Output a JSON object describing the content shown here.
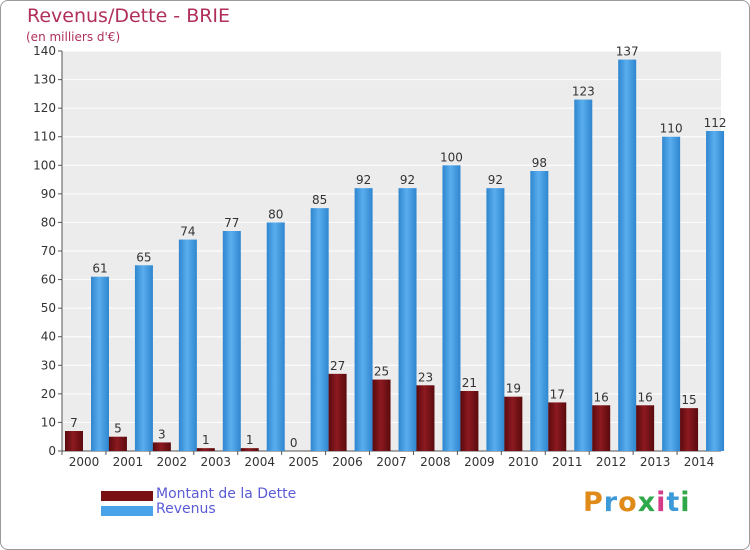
{
  "header": {
    "title": "Revenus/Dette - BRIE",
    "subtitle": "(en milliers d'€)"
  },
  "legend": {
    "items": [
      {
        "label": "Montant de la Dette",
        "color": "#7a0f14"
      },
      {
        "label": "Revenus",
        "color": "#4aa3e8"
      }
    ]
  },
  "logo": {
    "text": "Proxiti",
    "colors": [
      "#e08a1a",
      "#3d9ad8",
      "#e08a1a",
      "#2fa84a",
      "#d63b8a",
      "#3d9ad8",
      "#2fa84a"
    ]
  },
  "chart_data": {
    "type": "bar",
    "categories": [
      "2000",
      "2001",
      "2002",
      "2003",
      "2004",
      "2005",
      "2006",
      "2007",
      "2008",
      "2009",
      "2010",
      "2011",
      "2012",
      "2013",
      "2014"
    ],
    "series": [
      {
        "name": "Montant de la Dette",
        "color": "#7a0f14",
        "values": [
          7,
          5,
          3,
          1,
          1,
          0,
          27,
          25,
          23,
          21,
          19,
          17,
          16,
          16,
          15
        ]
      },
      {
        "name": "Revenus",
        "color": "#4aa3e8",
        "values": [
          61,
          65,
          74,
          77,
          80,
          85,
          92,
          92,
          100,
          92,
          98,
          123,
          137,
          110,
          112
        ]
      }
    ],
    "ylim": [
      0,
      140
    ],
    "yticks": [
      0,
      10,
      20,
      30,
      40,
      50,
      60,
      70,
      80,
      90,
      100,
      110,
      120,
      130,
      140
    ],
    "grid": true,
    "legend_position": "bottom-left"
  }
}
